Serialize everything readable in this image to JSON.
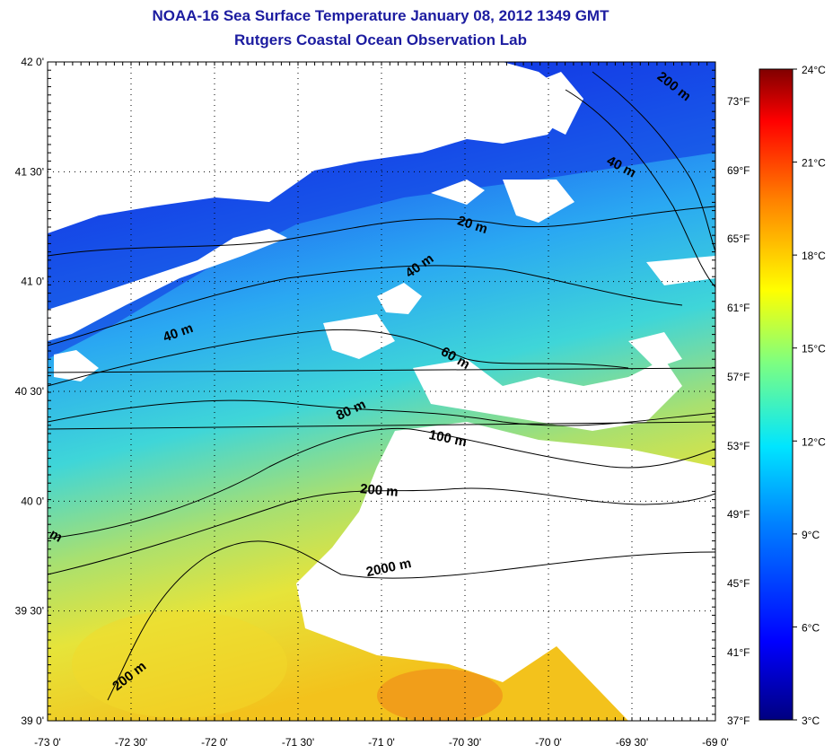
{
  "header": {
    "title": "NOAA-16 Sea Surface Temperature January 08, 2012 1349 GMT",
    "subtitle": "Rutgers Coastal Ocean Observation Lab"
  },
  "map": {
    "lat_ticks": [
      "42 0'",
      "41 30'",
      "41 0'",
      "40 30'",
      "40 0'",
      "39 30'",
      "39 0'"
    ],
    "lon_ticks": [
      "-73 0'",
      "-72 30'",
      "-72 0'",
      "-71 30'",
      "-71 0'",
      "-70 30'",
      "-70 0'",
      "-69 30'",
      "-69 0'"
    ],
    "fahrenheit_ticks": [
      "73°F",
      "69°F",
      "65°F",
      "61°F",
      "57°F",
      "53°F",
      "49°F",
      "45°F",
      "41°F",
      "37°F"
    ],
    "contour_labels": [
      "200 m",
      "40 m",
      "20 m",
      "40 m",
      "40 m",
      "60 m",
      "80 m",
      "100 m",
      "200 m",
      "2000 m",
      "200 m",
      "m"
    ],
    "colors": {
      "land": "#ffffff",
      "clouds": "#ffffff",
      "title": "#1c1ca0"
    }
  },
  "colorbar": {
    "labels": [
      "24°C",
      "21°C",
      "18°C",
      "15°C",
      "12°C",
      "9°C",
      "6°C",
      "3°C"
    ],
    "min_c": 3,
    "max_c": 24
  }
}
